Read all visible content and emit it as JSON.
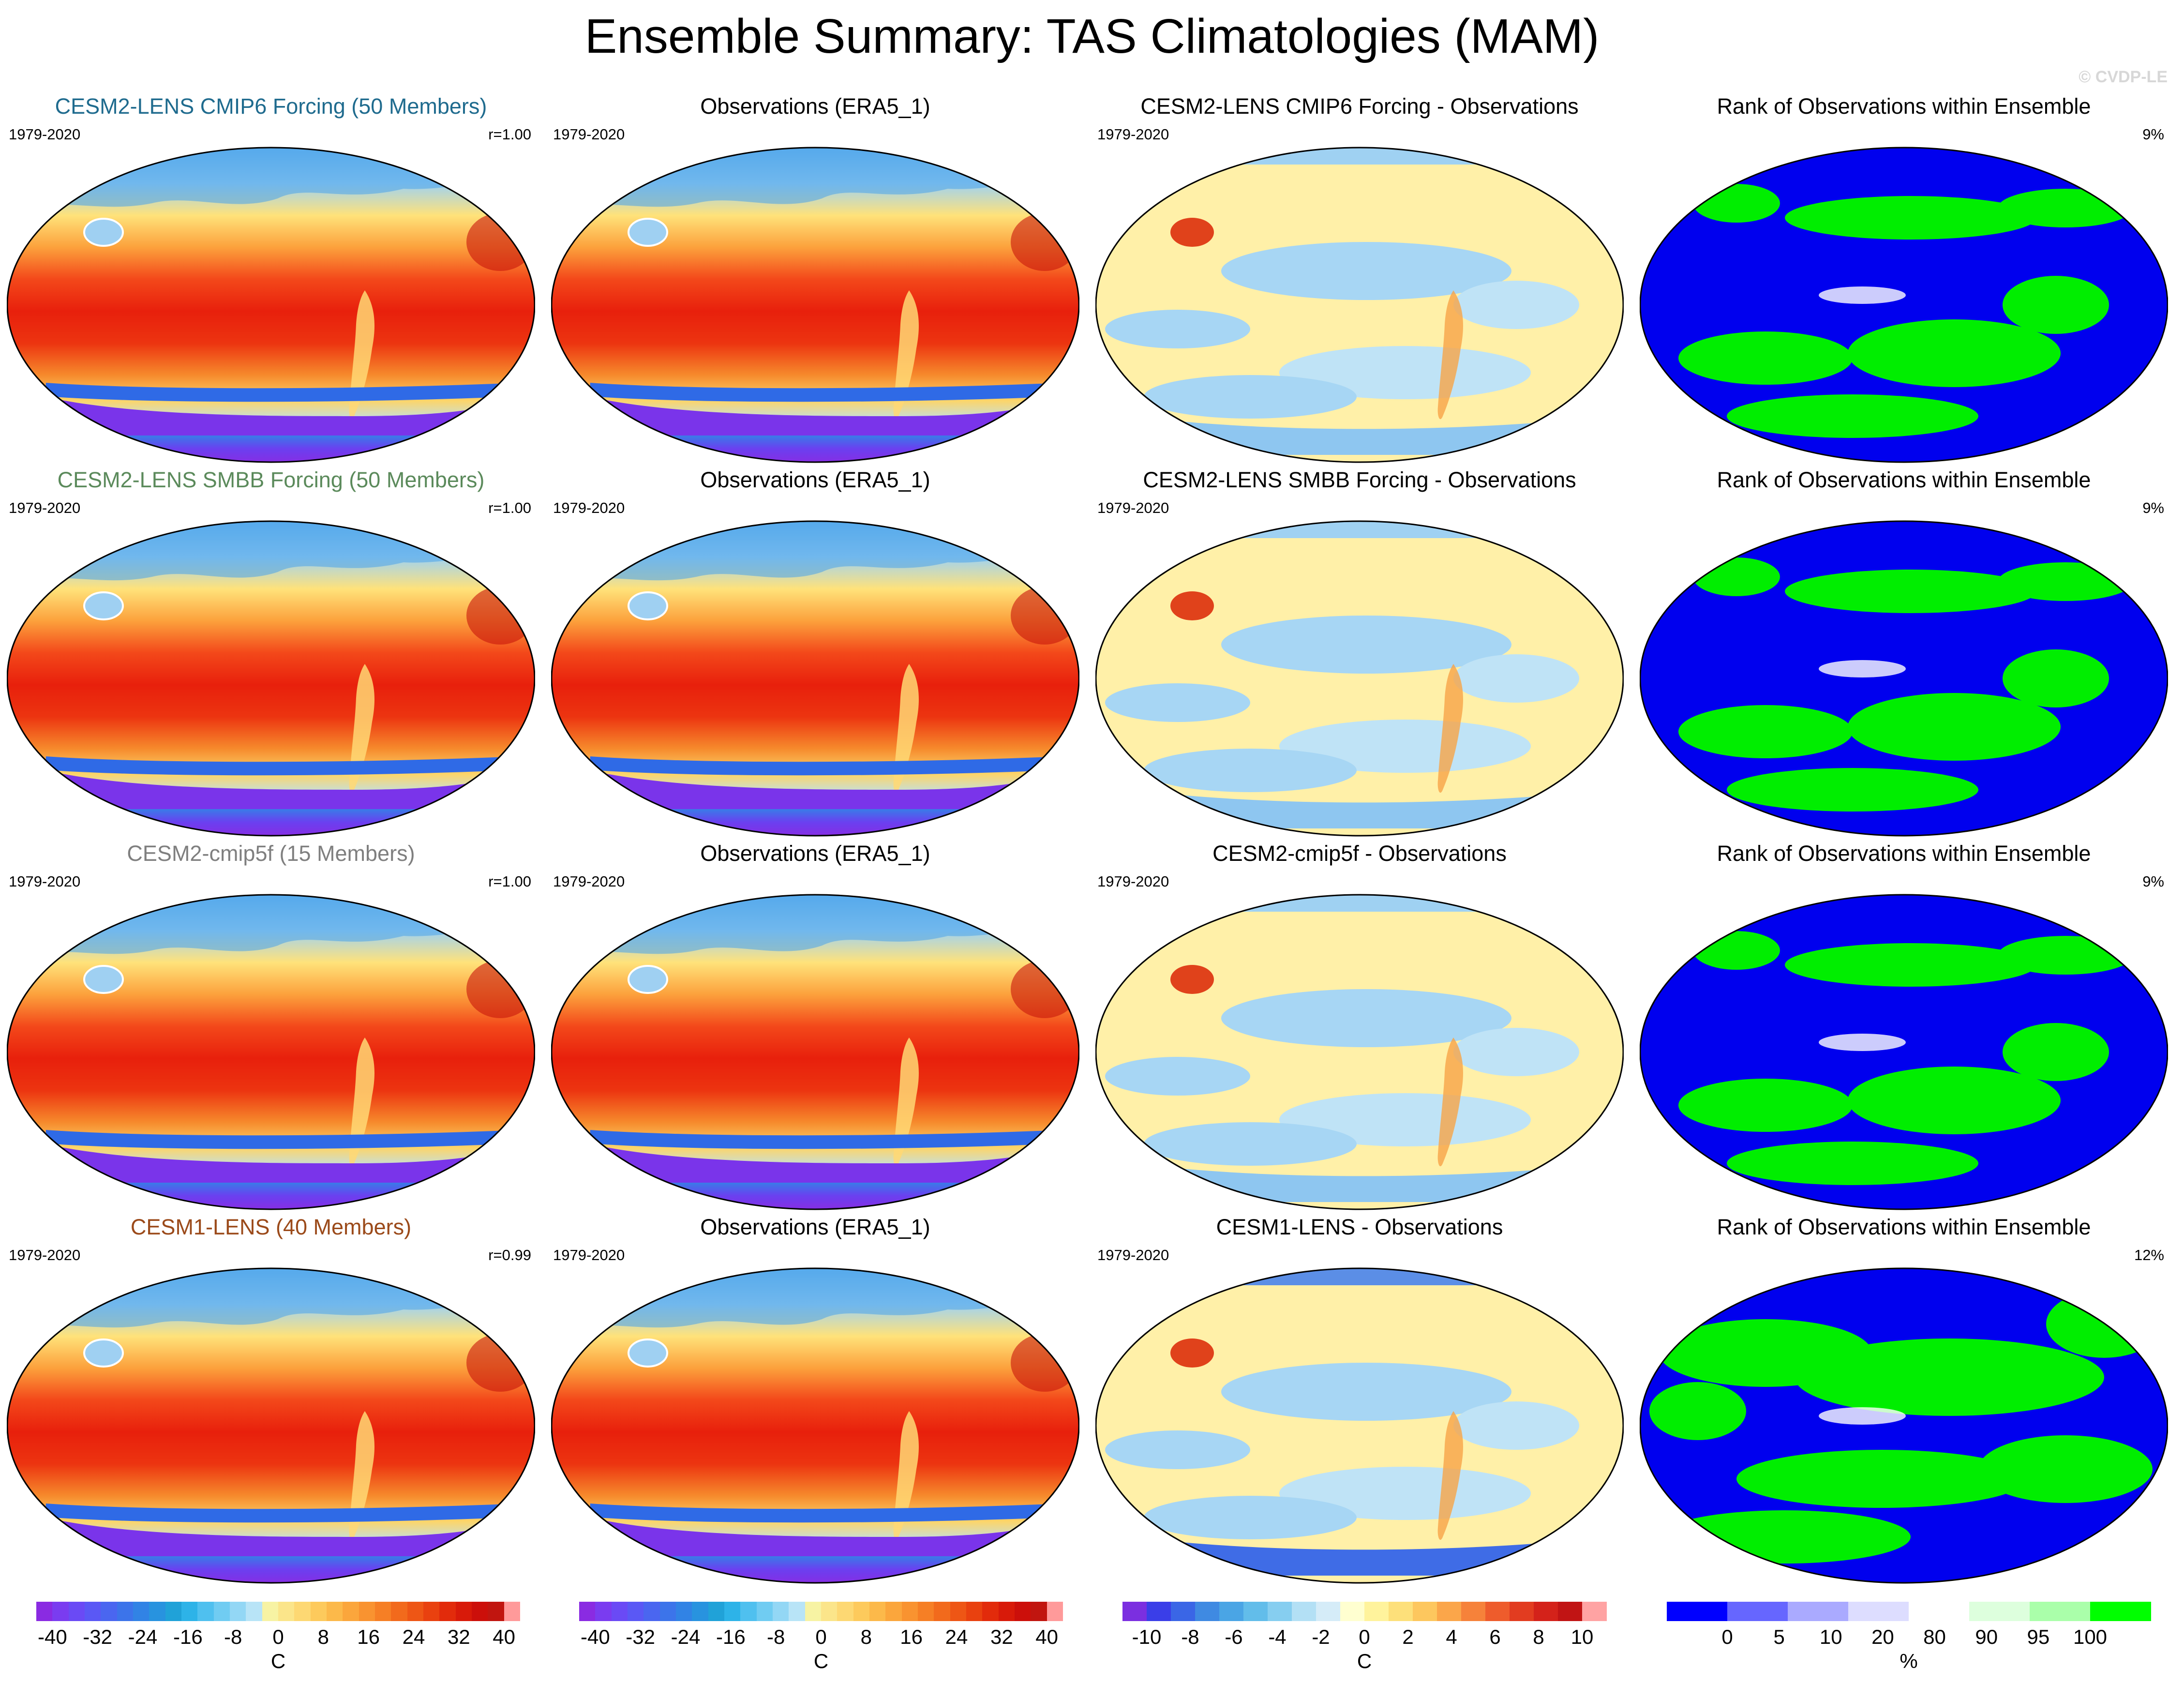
{
  "title": "Ensemble Summary: TAS Climatologies (MAM)",
  "watermark": "© CVDP-LE",
  "period": "1979-2020",
  "rows": [
    {
      "model": "CESM2-LENS CMIP6 Forcing (50 Members)",
      "model_color": "#1f6b8e",
      "r": "r=1.00",
      "obs": "Observations (ERA5_1)",
      "diff": "CESM2-LENS CMIP6 Forcing - Observations",
      "rank": "Rank of Observations within Ensemble",
      "pct": "9%"
    },
    {
      "model": "CESM2-LENS SMBB Forcing (50 Members)",
      "model_color": "#5b8a5b",
      "r": "r=1.00",
      "obs": "Observations (ERA5_1)",
      "diff": "CESM2-LENS SMBB Forcing - Observations",
      "rank": "Rank of Observations within Ensemble",
      "pct": "9%"
    },
    {
      "model": "CESM2-cmip5f (15 Members)",
      "model_color": "#7f7f7f",
      "r": "r=1.00",
      "obs": "Observations (ERA5_1)",
      "diff": "CESM2-cmip5f - Observations",
      "rank": "Rank of Observations within Ensemble",
      "pct": "9%"
    },
    {
      "model": "CESM1-LENS (40 Members)",
      "model_color": "#9b4a1a",
      "r": "r=0.99",
      "obs": "Observations (ERA5_1)",
      "diff": "CESM1-LENS - Observations",
      "rank": "Rank of Observations within Ensemble",
      "pct": "12%"
    }
  ],
  "colorbars": [
    {
      "unit": "C",
      "labels": [
        "-40",
        "-32",
        "-24",
        "-16",
        "-8",
        "0",
        "8",
        "16",
        "24",
        "32",
        "40"
      ],
      "colors": [
        "#8a2be2",
        "#7a3cf0",
        "#6a4af5",
        "#5a58f5",
        "#4a66f0",
        "#3c74ea",
        "#3183e5",
        "#2893df",
        "#20a2d8",
        "#2db3e8",
        "#4fc0ef",
        "#70ccf2",
        "#93d7f5",
        "#b8e4f7",
        "#f7f3a3",
        "#fbe58a",
        "#fdd873",
        "#fdca5c",
        "#fcb94a",
        "#fba63c",
        "#f99330",
        "#f67f25",
        "#f26a1c",
        "#ee5615",
        "#e9410f",
        "#e22b0b",
        "#d81a09",
        "#cc0f0a",
        "#c1150f",
        "#ff9a9a"
      ]
    },
    {
      "unit": "C",
      "labels": [
        "-40",
        "-32",
        "-24",
        "-16",
        "-8",
        "0",
        "8",
        "16",
        "24",
        "32",
        "40"
      ],
      "colors": [
        "#8a2be2",
        "#7a3cf0",
        "#6a4af5",
        "#5a58f5",
        "#4a66f0",
        "#3c74ea",
        "#3183e5",
        "#2893df",
        "#20a2d8",
        "#2db3e8",
        "#4fc0ef",
        "#70ccf2",
        "#93d7f5",
        "#b8e4f7",
        "#f7f3a3",
        "#fbe58a",
        "#fdd873",
        "#fdca5c",
        "#fcb94a",
        "#fba63c",
        "#f99330",
        "#f67f25",
        "#f26a1c",
        "#ee5615",
        "#e9410f",
        "#e22b0b",
        "#d81a09",
        "#cc0f0a",
        "#c1150f",
        "#ff9a9a"
      ]
    },
    {
      "unit": "C",
      "labels": [
        "-10",
        "-8",
        "-6",
        "-4",
        "-2",
        "0",
        "2",
        "4",
        "6",
        "8",
        "10"
      ],
      "colors": [
        "#7b2fe0",
        "#3a3ee8",
        "#3a66e6",
        "#3f8ae2",
        "#4aa5e5",
        "#62bdea",
        "#86cef0",
        "#b3e0f5",
        "#d5ecf8",
        "#ffffd0",
        "#fff39c",
        "#fde07a",
        "#fdc75e",
        "#fba64a",
        "#f6823a",
        "#ee5c2c",
        "#e23c20",
        "#d4221a",
        "#c11414",
        "#ffa3a3"
      ]
    },
    {
      "unit": "%",
      "labels": [
        "0",
        "5",
        "10",
        "20",
        "80",
        "90",
        "95",
        "100"
      ],
      "colors": [
        "#0000ff",
        "#6666ff",
        "#aaaaff",
        "#ddddff",
        "#ffffff",
        "#ddffdd",
        "#aaffaa",
        "#00ff00"
      ]
    }
  ]
}
